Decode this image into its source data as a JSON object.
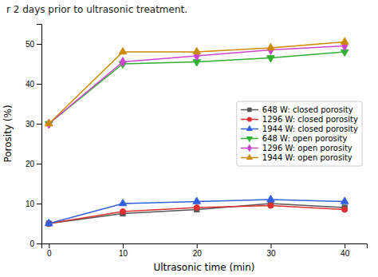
{
  "chart_data": {
    "type": "line",
    "title": "r 2 days prior to ultrasonic treatment.",
    "x_label": "Ultrasonic time (min)",
    "y_label": "Porosity (%)",
    "x": [
      0,
      10,
      20,
      30,
      40
    ],
    "series": [
      {
        "name": "648 W: closed porosity",
        "color": "#555555",
        "marker": "square",
        "values": [
          5.0,
          7.5,
          8.5,
          10.0,
          9.0
        ]
      },
      {
        "name": "1296 W: closed porosity",
        "color": "#e03030",
        "marker": "circle",
        "values": [
          5.0,
          8.0,
          9.0,
          9.5,
          8.5
        ]
      },
      {
        "name": "1944 W: closed porosity",
        "color": "#3060e0",
        "marker": "triangle-up",
        "values": [
          5.0,
          10.0,
          10.5,
          11.0,
          10.5
        ]
      },
      {
        "name": "648 W: open porosity",
        "color": "#30b030",
        "marker": "triangle-down",
        "values": [
          30.0,
          45.0,
          45.5,
          46.5,
          48.0
        ]
      },
      {
        "name": "1296 W: open porosity",
        "color": "#cc44cc",
        "marker": "diamond",
        "values": [
          30.0,
          45.5,
          47.0,
          48.5,
          49.5
        ]
      },
      {
        "name": "1944 W: open porosity",
        "color": "#cc8800",
        "marker": "triangle-up",
        "values": [
          30.0,
          48.0,
          48.0,
          49.0,
          50.5
        ]
      }
    ],
    "xlim": [
      -1,
      43
    ],
    "xticks": [
      0,
      10,
      20,
      30,
      40
    ],
    "ylim": [
      0,
      55
    ],
    "yticks": [
      0,
      10,
      20,
      30,
      40,
      50
    ],
    "grid": false,
    "legend": "right"
  }
}
